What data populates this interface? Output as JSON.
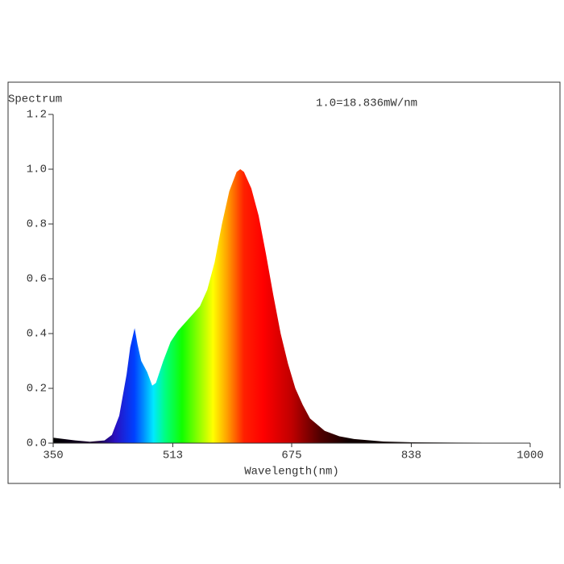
{
  "chart_data": {
    "type": "area",
    "title": "Spectrum",
    "annotation": "1.0=18.836mW/nm",
    "x_label": "Wavelength(nm)",
    "x": [
      350,
      380,
      400,
      420,
      430,
      440,
      450,
      455,
      461,
      465,
      470,
      478,
      485,
      490,
      500,
      510,
      520,
      530,
      540,
      550,
      560,
      570,
      580,
      590,
      600,
      605,
      610,
      620,
      630,
      640,
      650,
      660,
      670,
      680,
      690,
      700,
      720,
      740,
      760,
      800,
      840,
      900,
      1000
    ],
    "values": [
      0.02,
      0.01,
      0.005,
      0.01,
      0.03,
      0.1,
      0.25,
      0.35,
      0.42,
      0.36,
      0.3,
      0.26,
      0.21,
      0.22,
      0.3,
      0.37,
      0.41,
      0.44,
      0.47,
      0.5,
      0.56,
      0.66,
      0.8,
      0.92,
      0.99,
      1.0,
      0.99,
      0.93,
      0.83,
      0.69,
      0.54,
      0.4,
      0.29,
      0.2,
      0.14,
      0.09,
      0.045,
      0.025,
      0.015,
      0.006,
      0.003,
      0.002,
      0.001
    ],
    "xlim": [
      350,
      1000
    ],
    "xticks": [
      350,
      513,
      675,
      838,
      1000
    ],
    "ylim": [
      0,
      1.2
    ],
    "yticks": [
      {
        "value": 0,
        "label": "0.0"
      },
      0.2,
      0.4,
      0.6,
      0.8,
      {
        "value": 1,
        "label": "1.0"
      },
      1.2
    ]
  }
}
